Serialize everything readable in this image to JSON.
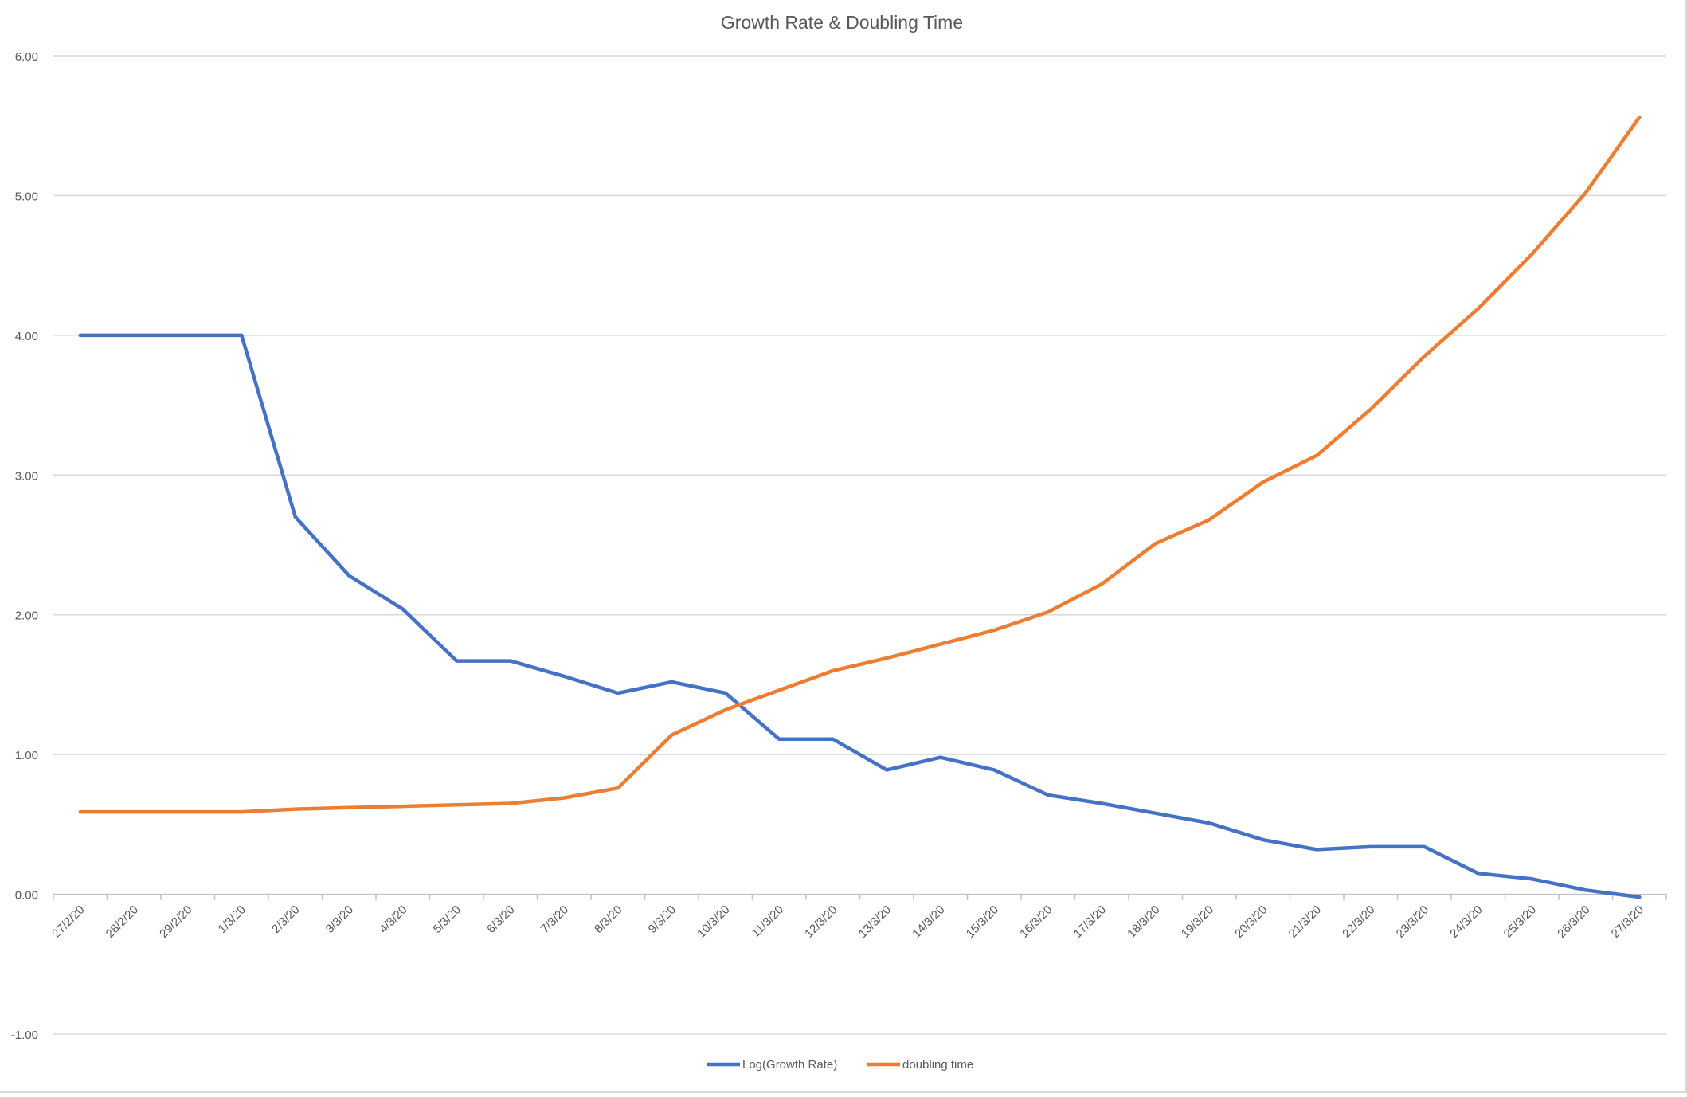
{
  "chart_data": {
    "type": "line",
    "title": "Growth Rate & Doubling Time",
    "xlabel": "",
    "ylabel": "",
    "ylim": [
      -1,
      6
    ],
    "yticks": [
      "6.00",
      "5.00",
      "4.00",
      "3.00",
      "2.00",
      "1.00",
      "0.00",
      "-1.00"
    ],
    "grid": true,
    "legend_position": "bottom",
    "categories": [
      "27/2/20",
      "28/2/20",
      "29/2/20",
      "1/3/20",
      "2/3/20",
      "3/3/20",
      "4/3/20",
      "5/3/20",
      "6/3/20",
      "7/3/20",
      "8/3/20",
      "9/3/20",
      "10/3/20",
      "11/3/20",
      "12/3/20",
      "13/3/20",
      "14/3/20",
      "15/3/20",
      "16/3/20",
      "17/3/20",
      "18/3/20",
      "19/3/20",
      "20/3/20",
      "21/3/20",
      "22/3/20",
      "23/3/20",
      "24/3/20",
      "25/3/20",
      "26/3/20",
      "27/3/20"
    ],
    "series": [
      {
        "name": "Log(Growth Rate)",
        "color": "#4472C4",
        "values": [
          4.0,
          4.0,
          4.0,
          4.0,
          2.7,
          2.28,
          2.04,
          1.67,
          1.67,
          1.56,
          1.44,
          1.52,
          1.44,
          1.11,
          1.11,
          0.89,
          0.98,
          0.89,
          0.71,
          0.65,
          0.58,
          0.51,
          0.39,
          0.32,
          0.34,
          0.34,
          0.15,
          0.11,
          0.03,
          -0.02
        ]
      },
      {
        "name": "doubling time",
        "color": "#ED7D31",
        "values": [
          0.59,
          0.59,
          0.59,
          0.59,
          0.61,
          0.62,
          0.63,
          0.64,
          0.65,
          0.69,
          0.76,
          1.14,
          1.32,
          1.46,
          1.6,
          1.69,
          1.79,
          1.89,
          2.02,
          2.22,
          2.51,
          2.68,
          2.95,
          3.14,
          3.47,
          3.85,
          4.19,
          4.58,
          5.02,
          5.56
        ]
      }
    ]
  }
}
